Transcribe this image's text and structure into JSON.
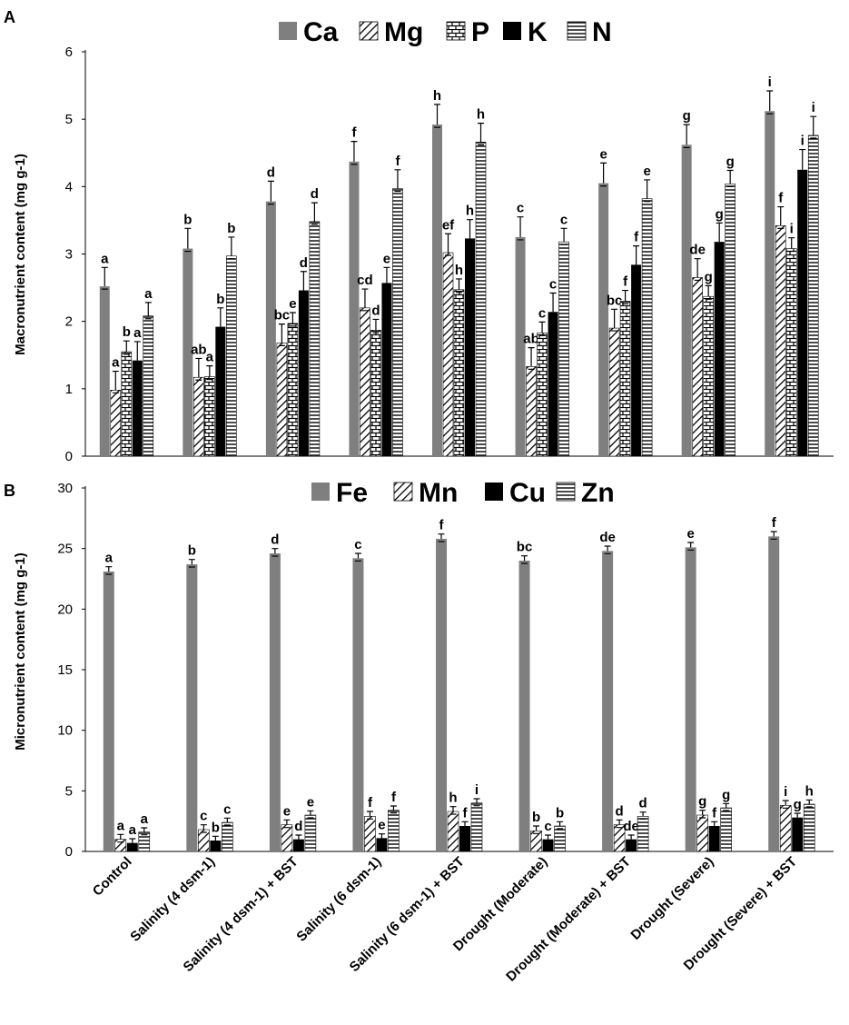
{
  "categories": [
    "Control",
    "Salinity (4 dsm-1)",
    "Salinity (4 dsm-1) + BST",
    "Salinity (6 dsm-1)",
    "Salinity (6 dsm-1) + BST",
    "Drought (Moderate)",
    "Drought (Moderate) + BST",
    "Drought (Severe)",
    "Drought (Severe) + BST"
  ],
  "chart_data": [
    {
      "panel": "A",
      "type": "bar",
      "ylabel": "Macronutrient content (mg g-1)",
      "ylim": [
        0,
        6
      ],
      "yticks": [
        "0",
        "1",
        "2",
        "3",
        "4",
        "5",
        "6"
      ],
      "legend_position": "top",
      "series": [
        {
          "name": "Ca",
          "pattern": "solid-grey",
          "values": [
            2.52,
            3.08,
            3.78,
            4.37,
            4.92,
            3.25,
            4.05,
            4.62,
            5.12
          ],
          "errors": [
            0.28,
            0.3,
            0.3,
            0.3,
            0.3,
            0.3,
            0.3,
            0.3,
            0.3
          ],
          "letters": [
            "a",
            "b",
            "d",
            "f",
            "h",
            "c",
            "e",
            "g",
            "i"
          ]
        },
        {
          "name": "Mg",
          "pattern": "diagonal",
          "values": [
            0.98,
            1.17,
            1.68,
            2.2,
            3.02,
            1.33,
            1.9,
            2.65,
            3.42
          ],
          "errors": [
            0.28,
            0.28,
            0.28,
            0.28,
            0.28,
            0.28,
            0.28,
            0.28,
            0.28
          ],
          "letters": [
            "a",
            "ab",
            "bc",
            "cd",
            "ef",
            "ab",
            "bc",
            "de",
            "f"
          ]
        },
        {
          "name": "P",
          "pattern": "brick",
          "values": [
            1.55,
            1.18,
            1.97,
            1.87,
            2.47,
            1.83,
            2.3,
            2.37,
            3.08
          ],
          "errors": [
            0.16,
            0.16,
            0.16,
            0.16,
            0.16,
            0.16,
            0.16,
            0.16,
            0.16
          ],
          "letters": [
            "b",
            "a",
            "e",
            "d",
            "h",
            "c",
            "f",
            "g",
            "i"
          ]
        },
        {
          "name": "K",
          "pattern": "solid-black",
          "values": [
            1.42,
            1.92,
            2.46,
            2.57,
            3.23,
            2.14,
            2.84,
            3.18,
            4.25
          ],
          "errors": [
            0.28,
            0.28,
            0.28,
            0.23,
            0.28,
            0.28,
            0.28,
            0.28,
            0.3
          ],
          "letters": [
            "a",
            "b",
            "d",
            "e",
            "h",
            "c",
            "f",
            "g",
            "i"
          ]
        },
        {
          "name": "N",
          "pattern": "horizontal",
          "values": [
            2.08,
            2.97,
            3.48,
            3.97,
            4.66,
            3.18,
            3.82,
            4.04,
            4.76
          ],
          "errors": [
            0.2,
            0.28,
            0.28,
            0.28,
            0.28,
            0.2,
            0.28,
            0.2,
            0.28
          ],
          "letters": [
            "a",
            "b",
            "d",
            "f",
            "h",
            "c",
            "e",
            "g",
            "i"
          ]
        }
      ]
    },
    {
      "panel": "B",
      "type": "bar",
      "ylabel": "Micronutrient content (mg g-1)",
      "ylim": [
        0,
        30
      ],
      "yticks": [
        "0",
        "5",
        "10",
        "15",
        "20",
        "25",
        "30"
      ],
      "legend_position": "top",
      "series": [
        {
          "name": "Fe",
          "pattern": "solid-grey",
          "values": [
            23.1,
            23.7,
            24.6,
            24.2,
            25.8,
            24.0,
            24.8,
            25.1,
            26.0
          ],
          "errors": [
            0.4,
            0.4,
            0.4,
            0.4,
            0.4,
            0.4,
            0.4,
            0.4,
            0.4
          ],
          "letters": [
            "a",
            "b",
            "d",
            "c",
            "f",
            "bc",
            "de",
            "e",
            "f"
          ]
        },
        {
          "name": "Mn",
          "pattern": "diagonal",
          "values": [
            1.0,
            1.8,
            2.2,
            2.9,
            3.3,
            1.7,
            2.2,
            3.0,
            3.8
          ],
          "errors": [
            0.4,
            0.4,
            0.4,
            0.4,
            0.4,
            0.4,
            0.4,
            0.4,
            0.4
          ],
          "letters": [
            "a",
            "c",
            "e",
            "f",
            "h",
            "b",
            "d",
            "g",
            "i"
          ]
        },
        {
          "name": "Cu",
          "pattern": "solid-black",
          "values": [
            0.7,
            0.9,
            1.0,
            1.1,
            2.1,
            1.0,
            1.0,
            2.1,
            2.8
          ],
          "errors": [
            0.35,
            0.35,
            0.35,
            0.35,
            0.35,
            0.35,
            0.35,
            0.35,
            0.35
          ],
          "letters": [
            "a",
            "b",
            "d",
            "e",
            "f",
            "c",
            "de",
            "f",
            "g"
          ]
        },
        {
          "name": "Zn",
          "pattern": "horizontal",
          "values": [
            1.6,
            2.4,
            3.0,
            3.4,
            4.0,
            2.1,
            2.9,
            3.6,
            3.9
          ],
          "errors": [
            0.35,
            0.35,
            0.35,
            0.35,
            0.35,
            0.35,
            0.35,
            0.35,
            0.35
          ],
          "letters": [
            "a",
            "c",
            "e",
            "f",
            "i",
            "b",
            "d",
            "g",
            "h"
          ]
        }
      ]
    }
  ],
  "colors": {
    "grey": "#7f7f7f",
    "black": "#000000",
    "axis": "#000000"
  }
}
